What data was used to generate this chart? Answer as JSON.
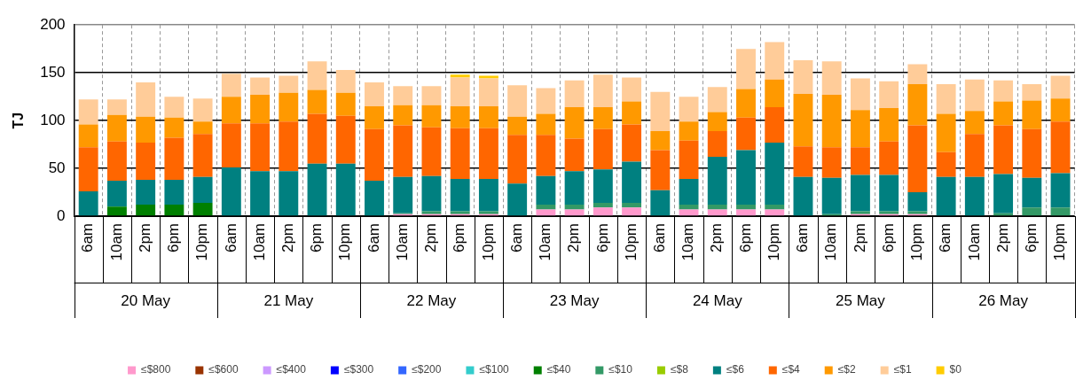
{
  "chart_data": {
    "type": "bar",
    "stacked": true,
    "ylabel": "TJ",
    "ylim": [
      0,
      200
    ],
    "yticks": [
      0,
      50,
      100,
      150,
      200
    ],
    "grid": true,
    "legend": "bottom",
    "categories": [
      "6am",
      "10am",
      "2pm",
      "6pm",
      "10pm",
      "6am",
      "10am",
      "2pm",
      "6pm",
      "10pm",
      "6am",
      "10am",
      "2pm",
      "6pm",
      "10pm",
      "6am",
      "10am",
      "2pm",
      "6pm",
      "10pm",
      "6am",
      "10am",
      "2pm",
      "6pm",
      "10pm",
      "6am",
      "10am",
      "2pm",
      "6pm",
      "10pm",
      "6am",
      "10am",
      "2pm",
      "6pm",
      "10pm"
    ],
    "annotations": [
      "20 May",
      "21 May",
      "22 May",
      "23 May",
      "24 May",
      "25 May",
      "26 May"
    ],
    "series": [
      {
        "name": "≤$800",
        "color": "#ff99cc",
        "values": [
          0,
          0,
          0,
          0,
          0,
          0,
          0,
          0,
          0,
          0,
          0,
          2,
          2,
          2,
          2,
          0,
          7,
          7,
          9,
          9,
          0,
          7,
          7,
          7,
          7,
          0,
          0,
          2,
          2,
          2,
          0,
          0,
          0,
          0,
          0
        ]
      },
      {
        "name": "≤$600",
        "color": "#993300",
        "values": [
          0,
          0,
          0,
          0,
          0,
          0,
          0,
          0,
          0,
          0,
          0,
          0,
          0,
          0,
          0,
          0,
          0,
          0,
          0,
          0,
          0,
          0,
          0,
          0,
          0,
          0,
          0,
          0,
          0,
          0,
          0,
          0,
          0,
          0,
          0
        ]
      },
      {
        "name": "≤$400",
        "color": "#cc99ff",
        "values": [
          0,
          0,
          0,
          0,
          0,
          0,
          0,
          0,
          0,
          0,
          0,
          0,
          0,
          0,
          0,
          0,
          0,
          0,
          0,
          0,
          0,
          0,
          0,
          0,
          0,
          0,
          0,
          0,
          0,
          0,
          0,
          0,
          0,
          0,
          0
        ]
      },
      {
        "name": "≤$300",
        "color": "#0000ff",
        "values": [
          0,
          0,
          0,
          0,
          0,
          0,
          0,
          0,
          0,
          0,
          0,
          0,
          0,
          0,
          0,
          0,
          0,
          0,
          0,
          0,
          0,
          0,
          0,
          0,
          0,
          0,
          0,
          0,
          0,
          0,
          0,
          0,
          0,
          0,
          0
        ]
      },
      {
        "name": "≤$200",
        "color": "#3366ff",
        "values": [
          0,
          0,
          0,
          0,
          0,
          0,
          0,
          0,
          0,
          0,
          0,
          0,
          0,
          0,
          0,
          0,
          0,
          0,
          0,
          0,
          0,
          0,
          0,
          0,
          0,
          0,
          0,
          0,
          0,
          0,
          0,
          0,
          0,
          0,
          0
        ]
      },
      {
        "name": "≤$100",
        "color": "#33cccc",
        "values": [
          0,
          0,
          0,
          0,
          0,
          0,
          0,
          0,
          0,
          0,
          0,
          0,
          0,
          0,
          0,
          0,
          0,
          0,
          0,
          0,
          0,
          0,
          0,
          0,
          0,
          0,
          0,
          0,
          0,
          0,
          0,
          0,
          0,
          0,
          0
        ]
      },
      {
        "name": "≤$40",
        "color": "#008000",
        "values": [
          0,
          10,
          12,
          12,
          14,
          0,
          0,
          0,
          0,
          0,
          0,
          0,
          0,
          0,
          0,
          0,
          0,
          0,
          0,
          0,
          0,
          0,
          0,
          0,
          0,
          0,
          0,
          0,
          0,
          0,
          0,
          0,
          0,
          0,
          0
        ]
      },
      {
        "name": "≤$10",
        "color": "#339966",
        "values": [
          0,
          0,
          0,
          0,
          0,
          0,
          0,
          0,
          0,
          0,
          0,
          1,
          3,
          3,
          3,
          0,
          5,
          5,
          5,
          5,
          0,
          5,
          5,
          5,
          5,
          0,
          2,
          3,
          3,
          3,
          0,
          0,
          3,
          9,
          9
        ]
      },
      {
        "name": "≤$8",
        "color": "#99cc00",
        "values": [
          0,
          0,
          0,
          0,
          0,
          0,
          0,
          0,
          0,
          0,
          0,
          0,
          0,
          0,
          0,
          0,
          0,
          0,
          0,
          0,
          0,
          0,
          0,
          0,
          0,
          0,
          0,
          0,
          0,
          0,
          0,
          0,
          0,
          0,
          0
        ]
      },
      {
        "name": "≤$6",
        "color": "#008080",
        "values": [
          26,
          27,
          26,
          26,
          27,
          51,
          47,
          47,
          55,
          55,
          37,
          38,
          37,
          34,
          34,
          34,
          30,
          35,
          35,
          43,
          27,
          27,
          50,
          57,
          65,
          41,
          38,
          38,
          38,
          20,
          41,
          41,
          41,
          31,
          36
        ]
      },
      {
        "name": "≤$4",
        "color": "#ff6600",
        "values": [
          46,
          41,
          39,
          44,
          45,
          46,
          50,
          52,
          52,
          50,
          54,
          54,
          51,
          53,
          53,
          51,
          43,
          34,
          42,
          39,
          42,
          40,
          27,
          34,
          37,
          32,
          32,
          29,
          35,
          70,
          26,
          45,
          51,
          51,
          54
        ]
      },
      {
        "name": "≤$2",
        "color": "#ff9900",
        "values": [
          24,
          28,
          27,
          21,
          13,
          28,
          30,
          30,
          25,
          24,
          24,
          21,
          23,
          23,
          23,
          19,
          22,
          33,
          23,
          24,
          20,
          20,
          20,
          30,
          29,
          55,
          55,
          39,
          35,
          43,
          40,
          24,
          25,
          30,
          24
        ]
      },
      {
        "name": "≤$1",
        "color": "#ffcc99",
        "values": [
          26,
          16,
          36,
          22,
          24,
          24,
          18,
          18,
          30,
          24,
          25,
          20,
          20,
          30,
          29,
          33,
          27,
          28,
          34,
          25,
          41,
          26,
          26,
          42,
          39,
          35,
          35,
          33,
          28,
          21,
          31,
          33,
          22,
          17,
          24
        ]
      },
      {
        "name": "$0",
        "color": "#ffcc00",
        "values": [
          0,
          0,
          0,
          0,
          0,
          0,
          0,
          0,
          0,
          0,
          0,
          0,
          0,
          3,
          3,
          0,
          0,
          0,
          0,
          0,
          0,
          0,
          0,
          0,
          0,
          0,
          0,
          0,
          0,
          0,
          0,
          0,
          0,
          0,
          0
        ]
      }
    ]
  }
}
